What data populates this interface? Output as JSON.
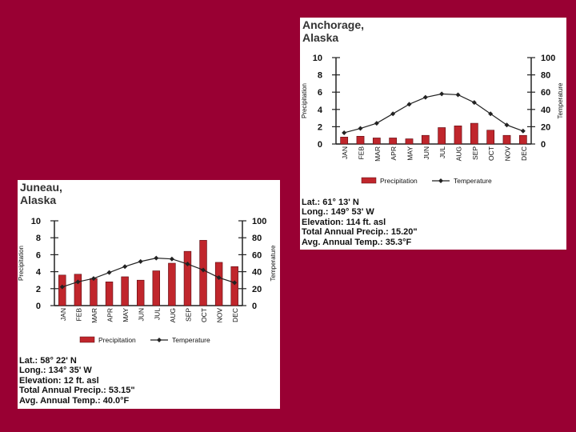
{
  "colors": {
    "background": "#990033",
    "bar": "#c0262c",
    "line": "#222222"
  },
  "chart_data": [
    {
      "type": "bar",
      "title": "Anchorage,\nAlaska",
      "categories": [
        "JAN",
        "FEB",
        "MAR",
        "APR",
        "MAY",
        "JUN",
        "JUL",
        "AUG",
        "SEP",
        "OCT",
        "NOV",
        "DEC"
      ],
      "series": [
        {
          "name": "Precipitation",
          "type": "bar",
          "axis": "left",
          "values": [
            0.8,
            0.9,
            0.7,
            0.7,
            0.6,
            1.0,
            1.9,
            2.1,
            2.4,
            1.6,
            1.0,
            1.0
          ]
        },
        {
          "name": "Temperature",
          "type": "line",
          "axis": "right",
          "values": [
            13,
            18,
            24,
            35,
            46,
            54,
            58,
            57,
            48,
            35,
            22,
            15
          ]
        }
      ],
      "ylabel": "Precipitation",
      "y2label": "Temperature",
      "ylim": [
        0,
        10
      ],
      "yticks": [
        0,
        2,
        4,
        6,
        8,
        10
      ],
      "y2lim": [
        0,
        100
      ],
      "y2ticks": [
        0,
        20,
        40,
        60,
        80,
        100
      ],
      "grid": false,
      "legend": "bottom",
      "info": [
        "Lat.: 61° 13' N",
        "Long.: 149° 53' W",
        "Elevation: 114 ft. asl",
        "Total Annual Precip.: 15.20\"",
        "Avg. Annual Temp.: 35.3°F"
      ]
    },
    {
      "type": "bar",
      "title": "Juneau,\nAlaska",
      "categories": [
        "JAN",
        "FEB",
        "MAR",
        "APR",
        "MAY",
        "JUN",
        "JUL",
        "AUG",
        "SEP",
        "OCT",
        "NOV",
        "DEC"
      ],
      "series": [
        {
          "name": "Precipitation",
          "type": "bar",
          "axis": "left",
          "values": [
            3.6,
            3.7,
            3.2,
            2.8,
            3.4,
            3.0,
            4.1,
            5.0,
            6.4,
            7.7,
            5.1,
            4.6
          ]
        },
        {
          "name": "Temperature",
          "type": "line",
          "axis": "right",
          "values": [
            22,
            28,
            32,
            39,
            46,
            52,
            56,
            55,
            49,
            42,
            33,
            27
          ]
        }
      ],
      "ylabel": "Precipitation",
      "y2label": "Temperature",
      "ylim": [
        0,
        10
      ],
      "yticks": [
        0,
        2,
        4,
        6,
        8,
        10
      ],
      "y2lim": [
        0,
        100
      ],
      "y2ticks": [
        0,
        20,
        40,
        60,
        80,
        100
      ],
      "grid": false,
      "legend": "bottom",
      "info": [
        "Lat.: 58° 22' N",
        "Long.: 134° 35' W",
        "Elevation: 12 ft. asl",
        "Total Annual Precip.: 53.15\"",
        "Avg. Annual Temp.: 40.0°F"
      ]
    }
  ]
}
